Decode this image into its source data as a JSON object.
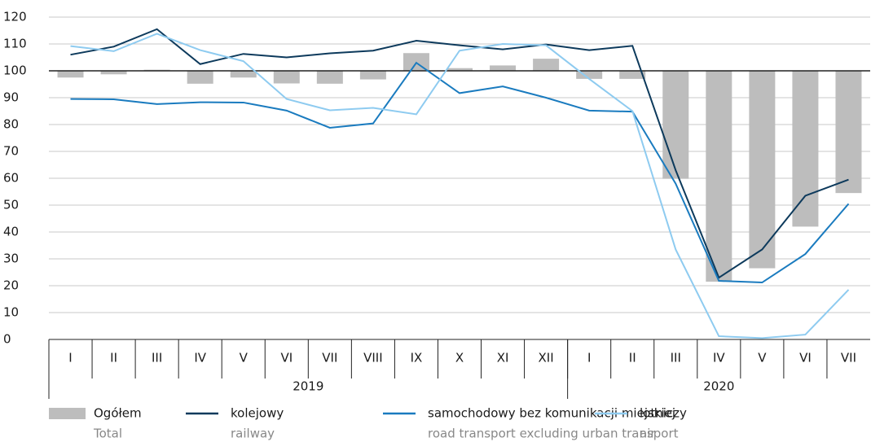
{
  "chart_data": {
    "type": "bar-line",
    "categories": [
      "I",
      "II",
      "III",
      "IV",
      "V",
      "VI",
      "VII",
      "VIII",
      "IX",
      "X",
      "XI",
      "XII",
      "I",
      "II",
      "III",
      "IV",
      "V",
      "VI",
      "VII"
    ],
    "groups": [
      {
        "label": "2019",
        "span": 12
      },
      {
        "label": "2020",
        "span": 7
      }
    ],
    "ylim": [
      0,
      120
    ],
    "yticks": [
      0,
      10,
      20,
      30,
      40,
      50,
      60,
      70,
      80,
      90,
      100,
      110,
      120
    ],
    "bar_baseline": 100,
    "grid": true,
    "series": [
      {
        "name": "Ogółem",
        "name_en": "Total",
        "type": "bar",
        "color": "#bdbdbd",
        "values": [
          97.5,
          98.7,
          100.4,
          95.2,
          97.5,
          95.3,
          95.2,
          96.8,
          106.6,
          101,
          102,
          104.5,
          97,
          97,
          59.8,
          21.5,
          26.5,
          42,
          54.5
        ]
      },
      {
        "name": "kolejowy",
        "name_en": "railway",
        "type": "line",
        "color": "#0d3a5c",
        "values": [
          106,
          109,
          115.5,
          102.5,
          106.3,
          105,
          106.5,
          107.5,
          111.2,
          109.5,
          108,
          109.8,
          107.7,
          109.3,
          63,
          23,
          33.5,
          53.5,
          59.5
        ]
      },
      {
        "name": "samochodowy bez komunikacji miejskiej",
        "name_en": "road transport excluding urban transport",
        "type": "line",
        "color": "#1a7bbf",
        "values": [
          89.5,
          89.4,
          87.6,
          88.3,
          88.2,
          85.2,
          78.8,
          80.4,
          103,
          91.7,
          94.2,
          90,
          85.2,
          84.8,
          58,
          21.8,
          21.2,
          31.8,
          50.5
        ]
      },
      {
        "name": "lotniczy",
        "name_en": "air",
        "type": "line",
        "color": "#8ecbf0",
        "values": [
          109.2,
          107.3,
          113.8,
          107.7,
          103.6,
          89.5,
          85.3,
          86.2,
          83.8,
          107.5,
          110,
          109.5,
          97,
          85,
          33.5,
          1.2,
          0.5,
          1.8,
          18.5
        ]
      }
    ]
  }
}
